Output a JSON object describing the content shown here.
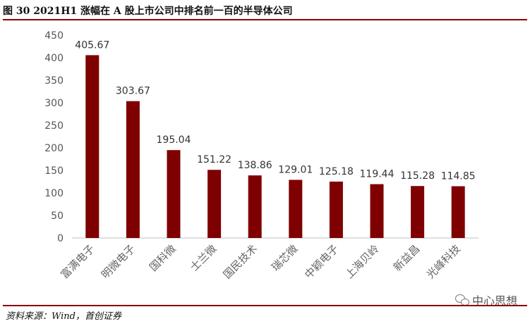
{
  "figure": {
    "title": "图  30 2021H1 涨幅在 A 股上市公司中排名前一百的半导体公司",
    "source": "资料来源：Wind，首创证券",
    "watermark": "中心思想",
    "watermark_icon": "wechat-icon"
  },
  "chart_data": {
    "type": "bar",
    "title": "",
    "xlabel": "",
    "ylabel": "",
    "ylim": [
      0,
      450
    ],
    "yticks": [
      0,
      50,
      100,
      150,
      200,
      250,
      300,
      350,
      400,
      450
    ],
    "categories": [
      "富满电子",
      "明微电子",
      "国科微",
      "士兰微",
      "国民技术",
      "瑞芯微",
      "中颖电子",
      "上海贝岭",
      "新益昌",
      "光峰科技"
    ],
    "values": [
      405.67,
      303.67,
      195.04,
      151.22,
      138.86,
      129.01,
      125.18,
      119.44,
      115.28,
      114.85
    ],
    "value_labels": [
      "405.67",
      "303.67",
      "195.04",
      "151.22",
      "138.86",
      "129.01",
      "125.18",
      "119.44",
      "115.28",
      "114.85"
    ],
    "bar_color": "#7f0000",
    "grid": false,
    "legend": "none"
  }
}
